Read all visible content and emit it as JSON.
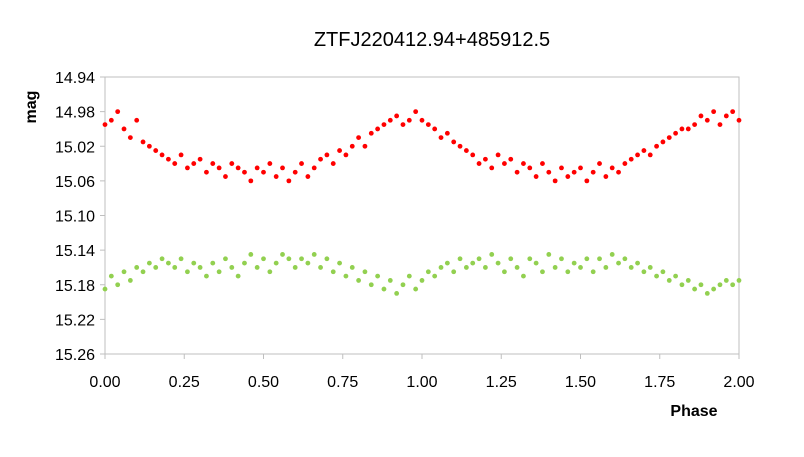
{
  "chart_data": {
    "type": "scatter",
    "title": "ZTFJ220412.94+485912.5",
    "xlabel": "Phase",
    "ylabel": "mag",
    "xlim": [
      0.0,
      2.0
    ],
    "ylim": [
      14.94,
      15.26
    ],
    "y_inverted": true,
    "x_ticks": [
      "0.00",
      "0.25",
      "0.50",
      "0.75",
      "1.00",
      "1.25",
      "1.50",
      "1.75",
      "2.00"
    ],
    "y_ticks": [
      "14.94",
      "14.98",
      "15.02",
      "15.06",
      "15.10",
      "15.14",
      "15.18",
      "15.22",
      "15.26"
    ],
    "grid": false,
    "legend": "none",
    "series": [
      {
        "color": "#ff0000",
        "x": [
          0.0,
          0.02,
          0.04,
          0.06,
          0.08,
          0.1,
          0.12,
          0.14,
          0.16,
          0.18,
          0.2,
          0.22,
          0.24,
          0.26,
          0.28,
          0.3,
          0.32,
          0.34,
          0.36,
          0.38,
          0.4,
          0.42,
          0.44,
          0.46,
          0.48,
          0.5,
          0.52,
          0.54,
          0.56,
          0.58,
          0.6,
          0.62,
          0.64,
          0.66,
          0.68,
          0.7,
          0.72,
          0.74,
          0.76,
          0.78,
          0.8,
          0.82,
          0.84,
          0.86,
          0.88,
          0.9,
          0.92,
          0.94,
          0.96,
          0.98,
          1.0,
          1.02,
          1.04,
          1.06,
          1.08,
          1.1,
          1.12,
          1.14,
          1.16,
          1.18,
          1.2,
          1.22,
          1.24,
          1.26,
          1.28,
          1.3,
          1.32,
          1.34,
          1.36,
          1.38,
          1.4,
          1.42,
          1.44,
          1.46,
          1.48,
          1.5,
          1.52,
          1.54,
          1.56,
          1.58,
          1.6,
          1.62,
          1.64,
          1.66,
          1.68,
          1.7,
          1.72,
          1.74,
          1.76,
          1.78,
          1.8,
          1.82,
          1.84,
          1.86,
          1.88,
          1.9,
          1.92,
          1.94,
          1.96,
          1.98,
          2.0
        ],
        "y": [
          14.995,
          14.99,
          14.98,
          15.0,
          15.01,
          14.99,
          15.015,
          15.02,
          15.025,
          15.03,
          15.035,
          15.04,
          15.03,
          15.045,
          15.04,
          15.035,
          15.05,
          15.04,
          15.045,
          15.055,
          15.04,
          15.045,
          15.05,
          15.06,
          15.045,
          15.05,
          15.04,
          15.055,
          15.045,
          15.06,
          15.05,
          15.04,
          15.055,
          15.045,
          15.035,
          15.03,
          15.04,
          15.025,
          15.03,
          15.02,
          15.01,
          15.02,
          15.005,
          15.0,
          14.995,
          14.99,
          14.985,
          14.995,
          14.99,
          14.98,
          14.99,
          14.995,
          15.0,
          15.01,
          15.005,
          15.015,
          15.02,
          15.025,
          15.03,
          15.04,
          15.035,
          15.045,
          15.03,
          15.04,
          15.035,
          15.05,
          15.04,
          15.045,
          15.055,
          15.04,
          15.05,
          15.06,
          15.045,
          15.055,
          15.05,
          15.045,
          15.06,
          15.05,
          15.04,
          15.055,
          15.045,
          15.05,
          15.04,
          15.035,
          15.03,
          15.025,
          15.03,
          15.02,
          15.015,
          15.01,
          15.005,
          15.0,
          15.0,
          14.995,
          14.985,
          14.99,
          14.98,
          14.995,
          14.985,
          14.98,
          14.99
        ]
      },
      {
        "color": "#92d050",
        "x": [
          0.0,
          0.02,
          0.04,
          0.06,
          0.08,
          0.1,
          0.12,
          0.14,
          0.16,
          0.18,
          0.2,
          0.22,
          0.24,
          0.26,
          0.28,
          0.3,
          0.32,
          0.34,
          0.36,
          0.38,
          0.4,
          0.42,
          0.44,
          0.46,
          0.48,
          0.5,
          0.52,
          0.54,
          0.56,
          0.58,
          0.6,
          0.62,
          0.64,
          0.66,
          0.68,
          0.7,
          0.72,
          0.74,
          0.76,
          0.78,
          0.8,
          0.82,
          0.84,
          0.86,
          0.88,
          0.9,
          0.92,
          0.94,
          0.96,
          0.98,
          1.0,
          1.02,
          1.04,
          1.06,
          1.08,
          1.1,
          1.12,
          1.14,
          1.16,
          1.18,
          1.2,
          1.22,
          1.24,
          1.26,
          1.28,
          1.3,
          1.32,
          1.34,
          1.36,
          1.38,
          1.4,
          1.42,
          1.44,
          1.46,
          1.48,
          1.5,
          1.52,
          1.54,
          1.56,
          1.58,
          1.6,
          1.62,
          1.64,
          1.66,
          1.68,
          1.7,
          1.72,
          1.74,
          1.76,
          1.78,
          1.8,
          1.82,
          1.84,
          1.86,
          1.88,
          1.9,
          1.92,
          1.94,
          1.96,
          1.98,
          2.0
        ],
        "y": [
          15.185,
          15.17,
          15.18,
          15.165,
          15.175,
          15.16,
          15.165,
          15.155,
          15.16,
          15.15,
          15.155,
          15.16,
          15.15,
          15.165,
          15.155,
          15.16,
          15.17,
          15.155,
          15.165,
          15.15,
          15.16,
          15.17,
          15.155,
          15.145,
          15.16,
          15.15,
          15.165,
          15.155,
          15.145,
          15.15,
          15.16,
          15.15,
          15.155,
          15.145,
          15.16,
          15.15,
          15.165,
          15.155,
          15.17,
          15.16,
          15.175,
          15.165,
          15.18,
          15.17,
          15.185,
          15.175,
          15.19,
          15.18,
          15.17,
          15.185,
          15.175,
          15.165,
          15.17,
          15.16,
          15.155,
          15.165,
          15.15,
          15.16,
          15.155,
          15.15,
          15.16,
          15.145,
          15.155,
          15.165,
          15.15,
          15.16,
          15.17,
          15.15,
          15.155,
          15.165,
          15.145,
          15.16,
          15.15,
          15.165,
          15.155,
          15.16,
          15.15,
          15.165,
          15.15,
          15.16,
          15.145,
          15.155,
          15.15,
          15.16,
          15.155,
          15.165,
          15.16,
          15.17,
          15.165,
          15.175,
          15.17,
          15.18,
          15.175,
          15.185,
          15.18,
          15.19,
          15.185,
          15.18,
          15.175,
          15.18,
          15.175
        ]
      }
    ]
  }
}
